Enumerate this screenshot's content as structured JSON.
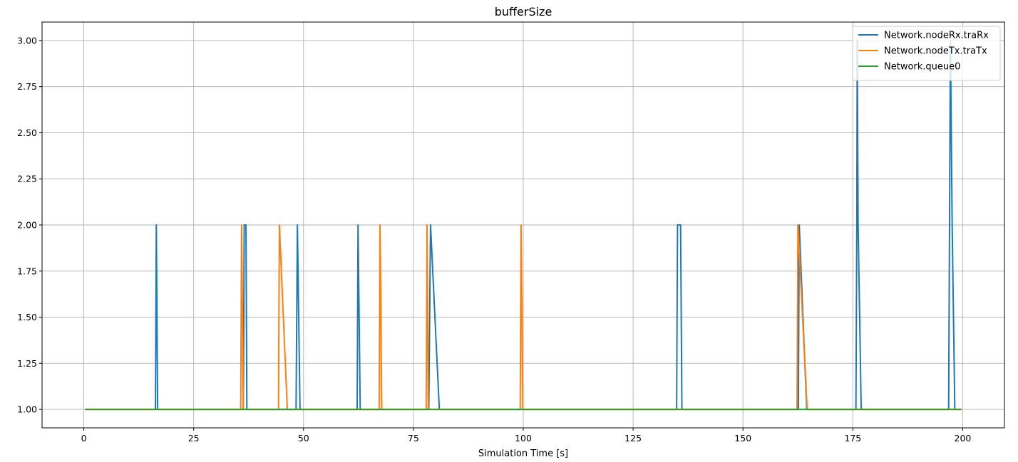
{
  "chart_data": {
    "type": "line",
    "title": "bufferSize",
    "xlabel": "Simulation Time [s]",
    "ylabel": "",
    "xlim": [
      -9.5,
      209.5
    ],
    "ylim": [
      0.9,
      3.1
    ],
    "xticks": [
      0,
      25,
      50,
      75,
      100,
      125,
      150,
      175,
      200
    ],
    "yticks": [
      1.0,
      1.25,
      1.5,
      1.75,
      2.0,
      2.25,
      2.5,
      2.75,
      3.0
    ],
    "xtick_labels": [
      "0",
      "25",
      "50",
      "75",
      "100",
      "125",
      "150",
      "175",
      "200"
    ],
    "ytick_labels": [
      "1.00",
      "1.25",
      "1.50",
      "1.75",
      "2.00",
      "2.25",
      "2.50",
      "2.75",
      "3.00"
    ],
    "grid": true,
    "legend_position": "top-right",
    "series": [
      {
        "name": "Network.nodeRx.traRx",
        "color": "#1f77b4",
        "points": [
          [
            0.3,
            1
          ],
          [
            16.3,
            1
          ],
          [
            16.5,
            2
          ],
          [
            16.8,
            1
          ],
          [
            36.3,
            1
          ],
          [
            36.5,
            2
          ],
          [
            36.9,
            2
          ],
          [
            37.1,
            1
          ],
          [
            48.3,
            1
          ],
          [
            48.6,
            2
          ],
          [
            49.2,
            1
          ],
          [
            62.2,
            1
          ],
          [
            62.4,
            2
          ],
          [
            62.9,
            1
          ],
          [
            78.5,
            1
          ],
          [
            78.9,
            2
          ],
          [
            80.9,
            1
          ],
          [
            134.9,
            1
          ],
          [
            135.1,
            2
          ],
          [
            135.8,
            2
          ],
          [
            136.1,
            1
          ],
          [
            162.6,
            1
          ],
          [
            162.8,
            2
          ],
          [
            164.5,
            1
          ],
          [
            175.7,
            1
          ],
          [
            175.9,
            2
          ],
          [
            176.0,
            3
          ],
          [
            176.2,
            2
          ],
          [
            176.9,
            1
          ],
          [
            196.8,
            1
          ],
          [
            197.0,
            2
          ],
          [
            197.2,
            3
          ],
          [
            197.6,
            2
          ],
          [
            198.2,
            1
          ],
          [
            199.7,
            1
          ]
        ]
      },
      {
        "name": "Network.nodeTx.traTx",
        "color": "#ff7f0e",
        "points": [
          [
            0.3,
            1
          ],
          [
            35.7,
            1
          ],
          [
            35.9,
            2
          ],
          [
            36.3,
            1
          ],
          [
            44.3,
            1
          ],
          [
            44.5,
            2
          ],
          [
            46.3,
            1
          ],
          [
            67.2,
            1
          ],
          [
            67.4,
            2
          ],
          [
            67.8,
            1
          ],
          [
            77.9,
            1
          ],
          [
            78.1,
            2
          ],
          [
            78.4,
            1
          ],
          [
            99.3,
            1
          ],
          [
            99.5,
            2
          ],
          [
            99.9,
            1
          ],
          [
            162.3,
            1
          ],
          [
            162.5,
            2
          ],
          [
            164.6,
            1
          ],
          [
            199.7,
            1
          ]
        ]
      },
      {
        "name": "Network.queue0",
        "color": "#2ca02c",
        "points": [
          [
            0.3,
            1
          ],
          [
            199.7,
            1
          ]
        ]
      }
    ]
  }
}
